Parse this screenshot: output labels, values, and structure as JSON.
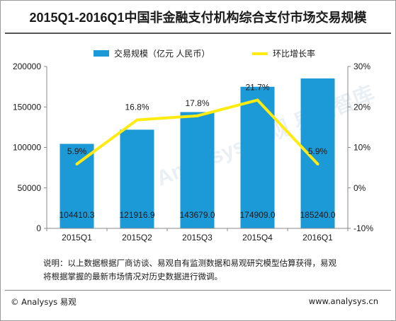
{
  "title": "2015Q1-2016Q1中国非金融支付机构综合支付市场交易规模",
  "note": "说明：以上数据根据厂商访谈、易观自有监测数据和易观研究模型估算获得，易观将根据掌握的最新市场情况对历史数据进行微调。",
  "footer": {
    "copyright": "© Analysys 易观",
    "website": "www.analysys.cn"
  },
  "watermark": "Analysys 易观 易观智库",
  "colors": {
    "bar": "#1b9ad7",
    "line": "#ffeb10",
    "text": "#1a1a1a",
    "axis": "#888888"
  },
  "chart_data": {
    "type": "bar",
    "categories": [
      "2015Q1",
      "2015Q2",
      "2015Q3",
      "2015Q4",
      "2016Q1"
    ],
    "series": [
      {
        "name": "交易规模（亿元 人民币）",
        "type": "bar",
        "axis": "left",
        "values": [
          104410.3,
          121916.9,
          143679.0,
          174909.0,
          185240.0
        ],
        "labels": [
          "104410.3",
          "121916.9",
          "143679.0",
          "174909.0",
          "185240.0"
        ]
      },
      {
        "name": "环比增长率",
        "type": "line",
        "axis": "right",
        "values": [
          5.9,
          16.8,
          17.8,
          21.7,
          5.9
        ],
        "labels": [
          "5.9%",
          "16.8%",
          "17.8%",
          "21.7%",
          "5.9%"
        ]
      }
    ],
    "y_left": {
      "min": 0,
      "max": 200000,
      "ticks": [
        0,
        50000,
        100000,
        150000,
        200000
      ],
      "tick_labels": [
        "0",
        "50000",
        "100000",
        "150000",
        "200000"
      ]
    },
    "y_right": {
      "min": -10,
      "max": 30,
      "ticks": [
        -10,
        0,
        10,
        20,
        30
      ],
      "tick_labels": [
        "-10%",
        "0%",
        "10%",
        "20%",
        "30%"
      ]
    },
    "legend_position": "top-center",
    "grid": false
  }
}
